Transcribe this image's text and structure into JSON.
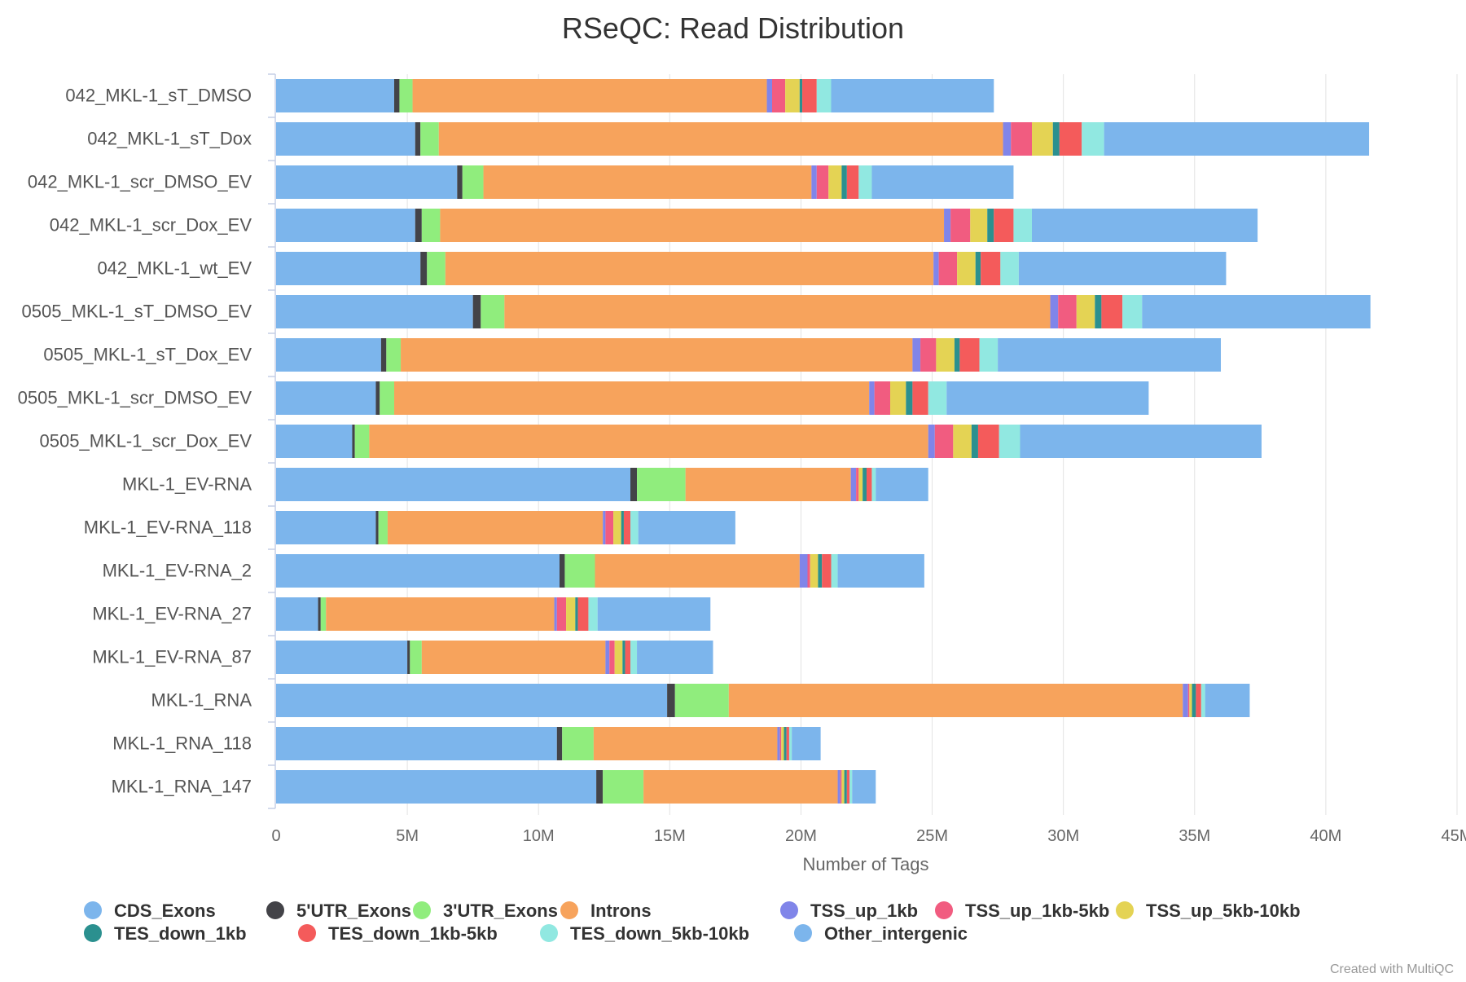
{
  "chart_data": {
    "type": "bar",
    "orientation": "horizontal",
    "stacked": true,
    "title": "RSeQC: Read Distribution",
    "xlabel": "Number of Tags",
    "ylabel": "",
    "xlim": [
      0,
      45000000
    ],
    "x_ticks": [
      0,
      5000000,
      10000000,
      15000000,
      20000000,
      25000000,
      30000000,
      35000000,
      40000000,
      45000000
    ],
    "x_tick_labels": [
      "0",
      "5M",
      "10M",
      "15M",
      "20M",
      "25M",
      "30M",
      "35M",
      "40M",
      "45M"
    ],
    "grid": true,
    "legend_position": "bottom",
    "categories": [
      "042_MKL-1_sT_DMSO",
      "042_MKL-1_sT_Dox",
      "042_MKL-1_scr_DMSO_EV",
      "042_MKL-1_scr_Dox_EV",
      "042_MKL-1_wt_EV",
      "0505_MKL-1_sT_DMSO_EV",
      "0505_MKL-1_sT_Dox_EV",
      "0505_MKL-1_scr_DMSO_EV",
      "0505_MKL-1_scr_Dox_EV",
      "MKL-1_EV-RNA",
      "MKL-1_EV-RNA_118",
      "MKL-1_EV-RNA_2",
      "MKL-1_EV-RNA_27",
      "MKL-1_EV-RNA_87",
      "MKL-1_RNA",
      "MKL-1_RNA_118",
      "MKL-1_RNA_147"
    ],
    "series": [
      {
        "name": "CDS_Exons",
        "color": "#7cb5ec",
        "values": [
          4500000,
          5300000,
          6900000,
          5300000,
          5500000,
          7500000,
          4000000,
          3800000,
          2900000,
          13500000,
          3800000,
          10800000,
          1600000,
          5000000,
          14900000,
          10700000,
          12200000
        ]
      },
      {
        "name": "5'UTR_Exons",
        "color": "#434348",
        "values": [
          200000,
          200000,
          200000,
          250000,
          250000,
          300000,
          200000,
          150000,
          100000,
          250000,
          100000,
          200000,
          100000,
          100000,
          300000,
          200000,
          250000
        ]
      },
      {
        "name": "3'UTR_Exons",
        "color": "#90ed7d",
        "values": [
          500000,
          700000,
          800000,
          700000,
          700000,
          900000,
          550000,
          550000,
          550000,
          1850000,
          350000,
          1150000,
          200000,
          450000,
          2050000,
          1200000,
          1550000
        ]
      },
      {
        "name": "Introns",
        "color": "#f7a35c",
        "values": [
          13500000,
          21500000,
          12500000,
          19200000,
          18600000,
          20800000,
          19500000,
          18100000,
          21300000,
          6300000,
          8200000,
          7800000,
          8700000,
          7000000,
          17300000,
          7000000,
          7400000
        ]
      },
      {
        "name": "TSS_up_1kb",
        "color": "#8085e9",
        "values": [
          200000,
          300000,
          200000,
          250000,
          200000,
          300000,
          300000,
          200000,
          250000,
          200000,
          100000,
          300000,
          100000,
          150000,
          200000,
          100000,
          100000
        ]
      },
      {
        "name": "TSS_up_1kb-5kb",
        "color": "#f15c80",
        "values": [
          500000,
          800000,
          450000,
          750000,
          700000,
          700000,
          600000,
          600000,
          700000,
          100000,
          300000,
          100000,
          350000,
          200000,
          50000,
          50000,
          50000
        ]
      },
      {
        "name": "TSS_up_5kb-10kb",
        "color": "#e4d354",
        "values": [
          550000,
          800000,
          500000,
          650000,
          700000,
          700000,
          700000,
          600000,
          700000,
          150000,
          300000,
          300000,
          350000,
          300000,
          100000,
          100000,
          100000
        ]
      },
      {
        "name": "TES_down_1kb",
        "color": "#2b908f",
        "values": [
          100000,
          250000,
          200000,
          250000,
          200000,
          250000,
          200000,
          250000,
          250000,
          150000,
          100000,
          150000,
          100000,
          100000,
          150000,
          100000,
          100000
        ]
      },
      {
        "name": "TES_down_1kb-5kb",
        "color": "#f45b5b",
        "values": [
          550000,
          850000,
          450000,
          750000,
          750000,
          800000,
          750000,
          600000,
          800000,
          200000,
          250000,
          350000,
          400000,
          200000,
          200000,
          100000,
          100000
        ]
      },
      {
        "name": "TES_down_5kb-10kb",
        "color": "#91e8e1",
        "values": [
          550000,
          850000,
          500000,
          700000,
          700000,
          750000,
          700000,
          700000,
          800000,
          150000,
          300000,
          250000,
          350000,
          250000,
          150000,
          100000,
          100000
        ]
      },
      {
        "name": "Other_intergenic",
        "color": "#7cb5ec",
        "values": [
          6200000,
          10100000,
          5400000,
          8600000,
          7900000,
          8700000,
          8500000,
          7700000,
          9200000,
          2000000,
          3700000,
          3300000,
          4300000,
          2900000,
          1700000,
          1100000,
          900000
        ]
      }
    ]
  },
  "credit": "Created with MultiQC"
}
